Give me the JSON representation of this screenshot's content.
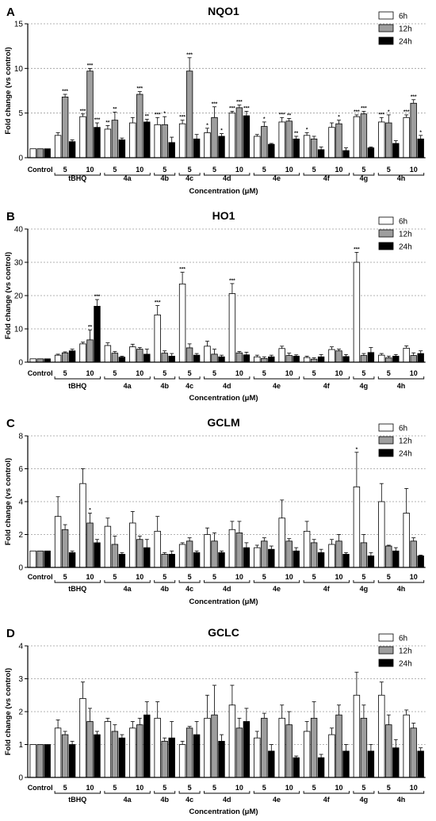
{
  "chart_data": [
    {
      "panel": "A",
      "type": "bar",
      "title": "NQO1",
      "xlabel": "Concentration (μM)",
      "ylabel": "Fold change (vs control)",
      "ylim": [
        0,
        15
      ],
      "yticks": [
        0,
        5,
        10,
        15
      ],
      "grid": "dotted at y ticks",
      "legend": "top-right",
      "series": [
        {
          "name": "6h",
          "color": "#ffffff",
          "values": [
            1,
            2.5,
            4.6,
            3.2,
            3.9,
            3.7,
            3.8,
            2.8,
            5.0,
            2.4,
            4.0,
            2.5,
            3.4,
            4.6,
            4.0,
            4.5
          ],
          "errors": [
            0,
            0.3,
            0.3,
            0.4,
            0.6,
            0.8,
            0.4,
            0.5,
            0.2,
            0.2,
            0.5,
            0.3,
            0.5,
            0.2,
            0.5,
            0.3
          ],
          "stars": [
            "",
            "",
            "***",
            "**",
            "",
            "***",
            "***",
            "*",
            "***",
            "",
            "***",
            "*",
            "",
            "***",
            "***",
            "***"
          ]
        },
        {
          "name": "12h",
          "color": "#9e9e9e",
          "values": [
            1,
            6.8,
            9.7,
            4.2,
            7.1,
            3.7,
            9.7,
            4.5,
            5.6,
            3.5,
            4.1,
            2.1,
            3.8,
            4.9,
            3.9,
            6.1
          ],
          "errors": [
            0,
            0.3,
            0.3,
            0.9,
            0.3,
            0.9,
            1.5,
            1.2,
            0.3,
            0.5,
            0.3,
            0.3,
            0.4,
            0.3,
            0.9,
            0.4
          ],
          "stars": [
            "",
            "***",
            "***",
            "**",
            "***",
            "*",
            "***",
            "***",
            "***",
            "*",
            "**",
            "",
            "*",
            "***",
            "*",
            "***"
          ]
        },
        {
          "name": "24h",
          "color": "#000000",
          "values": [
            1,
            1.8,
            3.4,
            2.0,
            4.0,
            1.7,
            2.1,
            2.4,
            4.7,
            1.5,
            2.1,
            0.9,
            0.8,
            1.1,
            1.6,
            2.1
          ],
          "errors": [
            0,
            0.2,
            0.5,
            0.2,
            0.3,
            0.6,
            0.5,
            0.3,
            0.5,
            0.1,
            0.3,
            0.3,
            0.3,
            0.1,
            0.3,
            0.4
          ],
          "stars": [
            "",
            "",
            "***",
            "",
            "**",
            "",
            "",
            "*",
            "***",
            "",
            "**",
            "",
            "",
            "",
            "",
            "*"
          ]
        }
      ]
    },
    {
      "panel": "B",
      "type": "bar",
      "title": "HO1",
      "xlabel": "Concentration (μM)",
      "ylabel": "Fold change (vs control)",
      "ylim": [
        0,
        40
      ],
      "yticks": [
        0,
        10,
        20,
        30,
        40
      ],
      "grid": "dotted at y ticks",
      "legend": "top-right",
      "series": [
        {
          "name": "6h",
          "color": "#ffffff",
          "values": [
            1,
            2.1,
            5.5,
            5.0,
            4.6,
            14.2,
            23.5,
            4.8,
            20.6,
            1.6,
            4.1,
            1.4,
            3.8,
            30.0,
            2.1,
            4.2
          ],
          "errors": [
            0,
            0.3,
            0.5,
            0.8,
            0.8,
            2.8,
            3.5,
            1.5,
            3.0,
            0.5,
            0.7,
            0.4,
            0.8,
            3.0,
            0.5,
            0.7
          ],
          "stars": [
            "",
            "",
            "",
            "",
            "",
            "***",
            "***",
            "",
            "***",
            "",
            "",
            "",
            "",
            "***",
            "",
            ""
          ]
        },
        {
          "name": "12h",
          "color": "#9e9e9e",
          "values": [
            1,
            2.8,
            6.7,
            2.7,
            3.9,
            2.7,
            4.3,
            2.4,
            2.8,
            1.1,
            2.0,
            0.9,
            3.4,
            2.0,
            1.3,
            2.0
          ],
          "errors": [
            0,
            0.3,
            3.0,
            0.5,
            0.5,
            0.7,
            1.2,
            1.5,
            0.4,
            0.5,
            0.7,
            0.4,
            0.5,
            0.6,
            0.5,
            0.8
          ],
          "stars": [
            "",
            "",
            "**",
            "",
            "",
            "",
            "",
            "",
            "",
            "",
            "",
            "",
            "",
            "",
            "",
            ""
          ]
        },
        {
          "name": "24h",
          "color": "#000000",
          "values": [
            1,
            3.4,
            16.8,
            1.5,
            2.4,
            1.8,
            2.1,
            1.6,
            2.2,
            1.6,
            1.8,
            1.6,
            1.7,
            2.9,
            1.8,
            2.6
          ],
          "errors": [
            0,
            0.5,
            2.0,
            0.3,
            1.5,
            0.8,
            0.5,
            0.5,
            0.8,
            0.5,
            0.4,
            0.7,
            0.6,
            1.5,
            0.5,
            0.8
          ],
          "stars": [
            "",
            "",
            "***",
            "",
            "",
            "",
            "",
            "",
            "",
            "",
            "",
            "",
            "",
            "",
            "",
            ""
          ]
        }
      ]
    },
    {
      "panel": "C",
      "type": "bar",
      "title": "GCLM",
      "xlabel": "Concentration (μM)",
      "ylabel": "Fold change (vs control)",
      "ylim": [
        0,
        8
      ],
      "yticks": [
        0,
        2,
        4,
        6,
        8
      ],
      "grid": "dotted at y ticks",
      "legend": "top-right",
      "series": [
        {
          "name": "6h",
          "color": "#ffffff",
          "values": [
            1,
            3.1,
            5.1,
            2.5,
            2.7,
            2.2,
            1.4,
            2.0,
            2.3,
            1.2,
            3.0,
            2.2,
            1.4,
            4.9,
            4.0,
            3.3
          ],
          "errors": [
            0,
            1.2,
            0.9,
            0.5,
            0.7,
            0.9,
            0.1,
            0.4,
            0.5,
            0.15,
            1.1,
            0.6,
            0.3,
            2.1,
            1.1,
            1.5
          ],
          "stars": [
            "",
            "",
            "",
            "",
            "",
            "",
            "",
            "",
            "",
            "",
            "",
            "",
            "",
            "*",
            "",
            ""
          ]
        },
        {
          "name": "12h",
          "color": "#9e9e9e",
          "values": [
            1,
            2.3,
            2.7,
            1.4,
            1.7,
            0.8,
            1.6,
            1.6,
            2.1,
            1.6,
            1.6,
            1.5,
            1.6,
            1.5,
            1.3,
            1.6
          ],
          "errors": [
            0,
            0.3,
            0.6,
            0.5,
            0.2,
            0.1,
            0.2,
            0.5,
            0.7,
            0.2,
            0.15,
            0.2,
            0.4,
            0.5,
            0.05,
            0.2
          ],
          "stars": [
            "",
            "",
            "*",
            "",
            "",
            "",
            "",
            "",
            "",
            "",
            "",
            "",
            "",
            "",
            "",
            ""
          ]
        },
        {
          "name": "24h",
          "color": "#000000",
          "values": [
            1,
            0.9,
            1.5,
            0.8,
            1.2,
            0.8,
            0.9,
            0.9,
            1.2,
            1.1,
            1.0,
            0.9,
            0.8,
            0.7,
            1.0,
            0.7
          ],
          "errors": [
            0,
            0.1,
            0.2,
            0.1,
            0.5,
            0.2,
            0.1,
            0.1,
            0.3,
            0.2,
            0.2,
            0.2,
            0.1,
            0.2,
            0.2,
            0.05
          ],
          "stars": [
            "",
            "",
            "",
            "",
            "",
            "",
            "",
            "",
            "",
            "",
            "",
            "",
            "",
            "",
            "",
            ""
          ]
        }
      ]
    },
    {
      "panel": "D",
      "type": "bar",
      "title": "GCLC",
      "xlabel": "Concentration (μM)",
      "ylabel": "Fold change (vs control)",
      "ylim": [
        0,
        4
      ],
      "yticks": [
        0,
        1,
        2,
        3,
        4
      ],
      "grid": "dotted at y ticks",
      "legend": "top-right",
      "series": [
        {
          "name": "6h",
          "color": "#ffffff",
          "values": [
            1,
            1.5,
            2.4,
            1.7,
            1.5,
            1.8,
            1.0,
            1.8,
            2.2,
            1.2,
            1.8,
            1.4,
            1.3,
            2.5,
            2.5,
            1.9
          ],
          "errors": [
            0,
            0.25,
            0.5,
            0.1,
            0.2,
            0.5,
            0.1,
            0.7,
            0.6,
            0.2,
            0.4,
            0.3,
            0.2,
            0.7,
            0.4,
            0.15
          ],
          "stars": [
            "",
            "",
            "",
            "",
            "",
            "",
            "",
            "",
            "",
            "",
            "",
            "",
            "",
            "",
            "",
            ""
          ]
        },
        {
          "name": "12h",
          "color": "#9e9e9e",
          "values": [
            1,
            1.3,
            1.7,
            1.4,
            1.6,
            1.1,
            1.5,
            1.9,
            1.5,
            1.8,
            1.6,
            1.8,
            1.9,
            1.8,
            1.6,
            1.5
          ],
          "errors": [
            0,
            0.1,
            0.4,
            0.2,
            0.2,
            0.1,
            0.05,
            0.9,
            0.3,
            0.15,
            0.4,
            0.5,
            0.3,
            0.4,
            0.3,
            0.15
          ],
          "stars": [
            "",
            "",
            "",
            "",
            "",
            "",
            "",
            "",
            "",
            "",
            "",
            "",
            "",
            "",
            "",
            ""
          ]
        },
        {
          "name": "24h",
          "color": "#000000",
          "values": [
            1,
            1.0,
            1.3,
            1.2,
            1.9,
            1.2,
            1.3,
            1.1,
            1.7,
            0.8,
            0.6,
            0.6,
            0.8,
            0.8,
            0.9,
            0.8
          ],
          "errors": [
            0,
            0.1,
            0.1,
            0.1,
            0.4,
            0.5,
            0.4,
            0.2,
            0.4,
            0.2,
            0.05,
            0.1,
            0.2,
            0.2,
            0.25,
            0.1
          ],
          "stars": [
            "",
            "",
            "",
            "",
            "",
            "",
            "",
            "",
            "",
            "",
            "",
            "",
            "",
            "",
            "",
            ""
          ]
        }
      ]
    }
  ],
  "x_axis": {
    "tick_labels": [
      "Control",
      "5",
      "10",
      "5",
      "10",
      "5",
      "5",
      "5",
      "10",
      "5",
      "10",
      "5",
      "10",
      "5",
      "5",
      "10"
    ],
    "groups": [
      {
        "label": "tBHQ",
        "from": 1,
        "to": 2
      },
      {
        "label": "4a",
        "from": 3,
        "to": 4
      },
      {
        "label": "4b",
        "from": 5,
        "to": 5
      },
      {
        "label": "4c",
        "from": 6,
        "to": 6
      },
      {
        "label": "4d",
        "from": 7,
        "to": 8
      },
      {
        "label": "4e",
        "from": 9,
        "to": 10
      },
      {
        "label": "4f",
        "from": 11,
        "to": 12
      },
      {
        "label": "4g",
        "from": 13,
        "to": 13
      },
      {
        "label": "4h",
        "from": 14,
        "to": 15
      }
    ]
  }
}
